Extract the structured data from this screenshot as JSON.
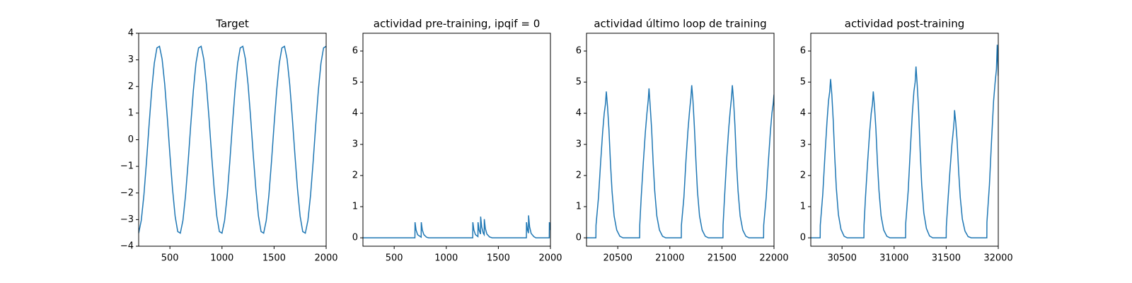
{
  "chart_data": [
    {
      "type": "line",
      "title": "Target",
      "color": "#1f77b4",
      "x": [
        200,
        225,
        250,
        275,
        300,
        325,
        350,
        375,
        400,
        425,
        450,
        475,
        500,
        525,
        550,
        575,
        600,
        625,
        650,
        675,
        700,
        725,
        750,
        775,
        800,
        825,
        850,
        875,
        900,
        925,
        950,
        975,
        1000,
        1025,
        1050,
        1075,
        1100,
        1125,
        1150,
        1175,
        1200,
        1225,
        1250,
        1275,
        1300,
        1325,
        1350,
        1375,
        1400,
        1425,
        1450,
        1475,
        1500,
        1525,
        1550,
        1575,
        1600,
        1625,
        1650,
        1675,
        1700,
        1725,
        1750,
        1775,
        1800,
        1825,
        1850,
        1875,
        1900,
        1925,
        1950,
        1975,
        2000
      ],
      "values": [
        -3.51,
        -3.03,
        -2.09,
        -0.83,
        0.56,
        1.85,
        2.87,
        3.45,
        3.51,
        3.03,
        2.09,
        0.83,
        -0.56,
        -1.85,
        -2.87,
        -3.45,
        -3.51,
        -3.03,
        -2.09,
        -0.83,
        0.56,
        1.85,
        2.87,
        3.45,
        3.51,
        3.03,
        2.09,
        0.83,
        -0.56,
        -1.85,
        -2.87,
        -3.45,
        -3.51,
        -3.03,
        -2.09,
        -0.83,
        0.56,
        1.85,
        2.87,
        3.45,
        3.51,
        3.03,
        2.09,
        0.83,
        -0.56,
        -1.85,
        -2.87,
        -3.45,
        -3.51,
        -3.03,
        -2.09,
        -0.83,
        0.56,
        1.85,
        2.87,
        3.45,
        3.51,
        3.03,
        2.09,
        0.83,
        -0.56,
        -1.85,
        -2.87,
        -3.45,
        -3.51,
        -3.03,
        -2.09,
        -0.83,
        0.56,
        1.85,
        2.87,
        3.45,
        3.51
      ],
      "xlim": [
        200,
        2000
      ],
      "ylim": [
        -4,
        4
      ],
      "xticks": [
        500,
        1000,
        1500,
        2000
      ],
      "yticks": [
        {
          "value": -4,
          "label": "−4"
        },
        {
          "value": -3,
          "label": "−3"
        },
        {
          "value": -2,
          "label": "−2"
        },
        {
          "value": -1,
          "label": "−1"
        },
        0,
        1,
        2,
        3,
        4
      ]
    },
    {
      "type": "line",
      "title": "actividad pre-training, ipqif = 0",
      "color": "#1f77b4",
      "x": [
        200,
        699,
        700,
        710,
        725,
        759,
        760,
        770,
        785,
        810,
        830,
        1254,
        1255,
        1265,
        1280,
        1304,
        1305,
        1315,
        1329,
        1330,
        1340,
        1355,
        1364,
        1365,
        1375,
        1390,
        1415,
        1440,
        1769,
        1770,
        1780,
        1789,
        1790,
        1800,
        1815,
        1840,
        1860,
        1989,
        1990,
        2000
      ],
      "values": [
        0,
        0,
        0.5,
        0.25,
        0.1,
        0.02,
        0.5,
        0.25,
        0.1,
        0.02,
        0,
        0,
        0.5,
        0.25,
        0.1,
        0.04,
        0.5,
        0.25,
        0.12,
        0.68,
        0.35,
        0.15,
        0.1,
        0.6,
        0.3,
        0.12,
        0.03,
        0,
        0,
        0.5,
        0.25,
        0.15,
        0.72,
        0.35,
        0.14,
        0.04,
        0,
        0,
        0.5,
        0.25
      ],
      "xlim": [
        200,
        2000
      ],
      "ylim": [
        -0.27,
        6.57
      ],
      "xticks": [
        500,
        1000,
        1500,
        2000
      ],
      "yticks": [
        0,
        1,
        2,
        3,
        4,
        5,
        6
      ]
    },
    {
      "type": "line",
      "title": "actividad último loop de training",
      "color": "#1f77b4",
      "x": [
        20200,
        20290,
        20291,
        20315,
        20335,
        20355,
        20370,
        20382,
        20390,
        20402,
        20415,
        20430,
        20445,
        20465,
        20490,
        20520,
        20550,
        20710,
        20711,
        20725,
        20745,
        20765,
        20780,
        20792,
        20800,
        20812,
        20825,
        20840,
        20855,
        20875,
        20900,
        20930,
        20960,
        21110,
        21111,
        21135,
        21155,
        21175,
        21190,
        21202,
        21210,
        21222,
        21235,
        21250,
        21265,
        21285,
        21310,
        21340,
        21370,
        21510,
        21511,
        21525,
        21545,
        21565,
        21580,
        21592,
        21600,
        21612,
        21625,
        21640,
        21655,
        21675,
        21700,
        21730,
        21760,
        21900,
        21901,
        21925,
        21945,
        21965,
        21980,
        21992,
        22000
      ],
      "values": [
        0,
        0,
        0.4,
        1.3,
        2.4,
        3.4,
        4.0,
        4.3,
        4.7,
        4.2,
        3.5,
        2.4,
        1.5,
        0.7,
        0.25,
        0.05,
        0,
        0,
        0.4,
        1.3,
        2.4,
        3.4,
        4.0,
        4.4,
        4.8,
        4.2,
        3.5,
        2.4,
        1.5,
        0.7,
        0.25,
        0.05,
        0,
        0,
        0.4,
        1.3,
        2.5,
        3.5,
        4.1,
        4.5,
        4.9,
        4.4,
        3.6,
        2.5,
        1.5,
        0.7,
        0.25,
        0.05,
        0,
        0,
        0.4,
        1.3,
        2.5,
        3.5,
        4.1,
        4.5,
        4.9,
        4.4,
        3.6,
        2.4,
        1.5,
        0.7,
        0.25,
        0.05,
        0,
        0,
        0.4,
        1.3,
        2.4,
        3.4,
        4.0,
        4.3,
        4.6
      ],
      "xlim": [
        20200,
        22000
      ],
      "ylim": [
        -0.27,
        6.57
      ],
      "xticks": [
        20500,
        21000,
        21500,
        22000
      ],
      "yticks": [
        0,
        1,
        2,
        3,
        4,
        5,
        6
      ]
    },
    {
      "type": "line",
      "title": "actividad post-training",
      "color": "#1f77b4",
      "x": [
        30200,
        30290,
        30291,
        30315,
        30335,
        30355,
        30370,
        30382,
        30390,
        30402,
        30415,
        30430,
        30445,
        30465,
        30490,
        30520,
        30550,
        30710,
        30711,
        30725,
        30745,
        30765,
        30780,
        30792,
        30800,
        30812,
        30825,
        30840,
        30855,
        30875,
        30900,
        30930,
        30960,
        31110,
        31111,
        31135,
        31155,
        31175,
        31190,
        31202,
        31210,
        31222,
        31235,
        31250,
        31265,
        31285,
        31310,
        31340,
        31370,
        31500,
        31501,
        31515,
        31535,
        31555,
        31570,
        31577,
        31580,
        31592,
        31605,
        31620,
        31635,
        31655,
        31680,
        31710,
        31740,
        31890,
        31891,
        31915,
        31935,
        31955,
        31970,
        31982,
        31990,
        32000
      ],
      "values": [
        0,
        0,
        0.4,
        1.4,
        2.6,
        3.7,
        4.4,
        4.7,
        5.1,
        4.6,
        3.8,
        2.6,
        1.6,
        0.75,
        0.27,
        0.05,
        0,
        0,
        0.4,
        1.3,
        2.4,
        3.4,
        4.0,
        4.3,
        4.7,
        4.2,
        3.5,
        2.4,
        1.5,
        0.7,
        0.25,
        0.05,
        0,
        0,
        0.45,
        1.5,
        2.8,
        4.0,
        4.7,
        5.0,
        5.5,
        4.9,
        4.1,
        2.8,
        1.7,
        0.8,
        0.3,
        0.06,
        0,
        0,
        0.35,
        1.1,
        2.1,
        3.0,
        3.5,
        3.8,
        4.1,
        3.7,
        3.1,
        2.1,
        1.3,
        0.6,
        0.22,
        0.04,
        0,
        0,
        0.5,
        1.7,
        3.1,
        4.4,
        5.0,
        5.4,
        6.2,
        5.2
      ],
      "xlim": [
        30200,
        32000
      ],
      "ylim": [
        -0.27,
        6.57
      ],
      "xticks": [
        30500,
        31000,
        31500,
        32000
      ],
      "yticks": [
        0,
        1,
        2,
        3,
        4,
        5,
        6
      ]
    }
  ]
}
